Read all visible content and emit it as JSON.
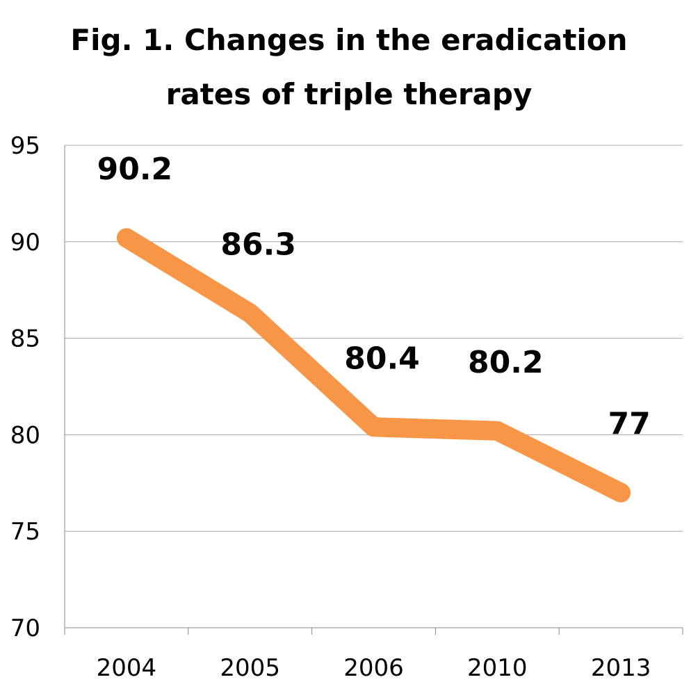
{
  "chart_data": {
    "type": "line",
    "title_lines": [
      "Fig. 1. Changes in the eradication",
      "rates of triple therapy"
    ],
    "categories": [
      "2004",
      "2005",
      "2006",
      "2010",
      "2013"
    ],
    "series": [
      {
        "values": [
          90.2,
          86.3,
          80.4,
          80.2,
          77
        ],
        "labels": [
          "90.2",
          "86.3",
          "80.4",
          "80.2",
          "77"
        ]
      }
    ],
    "ylim": [
      70,
      95
    ],
    "yticks": [
      "70",
      "75",
      "80",
      "85",
      "90",
      "95"
    ],
    "grid": true,
    "legend": "none",
    "colors": {
      "line": "#F79646",
      "grid": "#A6A6A6",
      "axis": "#888888"
    }
  }
}
